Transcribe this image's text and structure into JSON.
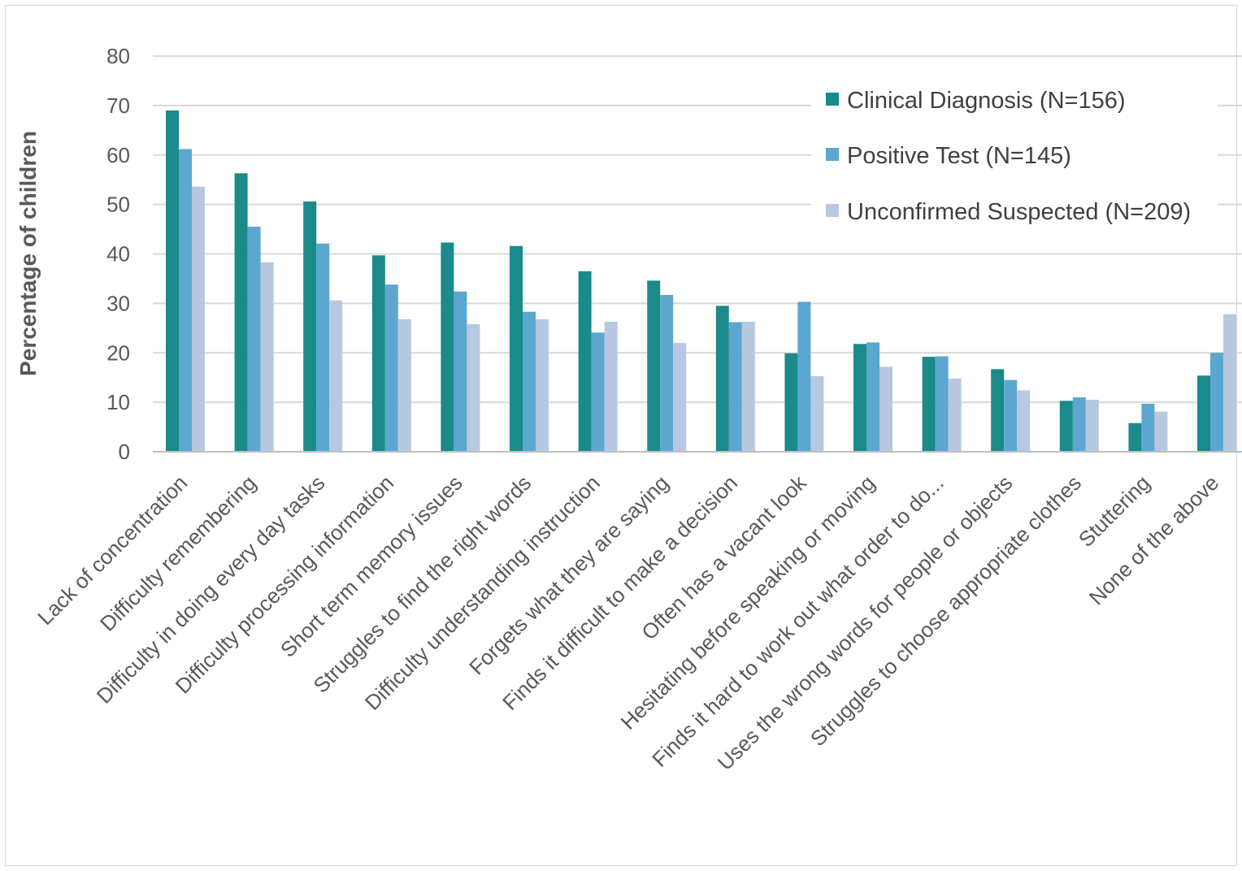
{
  "chart_data": {
    "type": "bar",
    "ylabel": "Percentage of children",
    "ylim": [
      0,
      80
    ],
    "yticks": [
      0,
      10,
      20,
      30,
      40,
      50,
      60,
      70,
      80
    ],
    "grid": true,
    "legend_position": "top-right",
    "categories": [
      "Lack of concentration",
      "Difficulty remembering",
      "Difficulty in doing every day tasks",
      "Difficulty processing information",
      "Short term memory issues",
      "Struggles to find the right words",
      "Difficulty understanding instruction",
      "Forgets what they are saying",
      "Finds it difficult to make a decision",
      "Often has a vacant look",
      "Hesitating before speaking or moving",
      "Finds it hard to work out what order to do...",
      "Uses the wrong words for people or objects",
      "Struggles to choose appropriate clothes",
      "Stuttering",
      "None of the above"
    ],
    "series": [
      {
        "name": "Clinical Diagnosis (N=156)",
        "color": "#1a8a8a",
        "values": [
          69,
          56.3,
          50.6,
          39.7,
          42.3,
          41.6,
          36.5,
          34.6,
          29.5,
          19.9,
          21.8,
          19.2,
          16.7,
          10.3,
          5.8,
          15.4
        ]
      },
      {
        "name": "Positive Test (N=145)",
        "color": "#5ba7cf",
        "values": [
          61.2,
          45.5,
          42.1,
          33.8,
          32.4,
          28.3,
          24.1,
          31.7,
          26.2,
          30.3,
          22.1,
          19.3,
          14.5,
          11.0,
          9.7,
          20.0
        ]
      },
      {
        "name": "Unconfirmed Suspected (N=209)",
        "color": "#b7c8e0",
        "values": [
          53.6,
          38.3,
          30.6,
          26.8,
          25.8,
          26.8,
          26.3,
          22.0,
          26.3,
          15.3,
          17.2,
          14.8,
          12.4,
          10.5,
          8.1,
          27.8
        ]
      }
    ]
  }
}
